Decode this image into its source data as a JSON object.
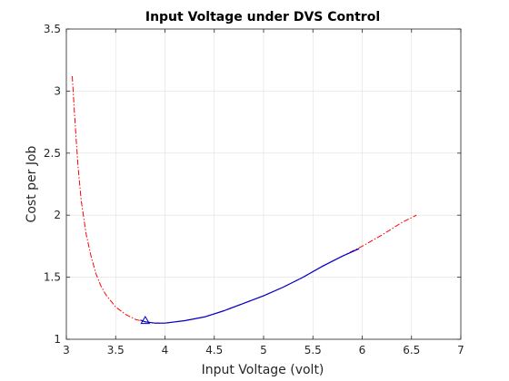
{
  "chart_data": {
    "type": "line",
    "title": "Input Voltage under DVS Control",
    "xlabel": "Input Voltage (volt)",
    "ylabel": "Cost per Job",
    "xlim": [
      3,
      7
    ],
    "ylim": [
      1,
      3.5
    ],
    "xticks": [
      3,
      3.5,
      4,
      4.5,
      5,
      5.5,
      6,
      6.5,
      7
    ],
    "xtick_labels": [
      "3",
      "3.5",
      "4",
      "4.5",
      "5",
      "5.5",
      "6",
      "6.5",
      "7"
    ],
    "yticks": [
      1,
      1.5,
      2,
      2.5,
      3,
      3.5
    ],
    "ytick_labels": [
      "1",
      "1.5",
      "2",
      "2.5",
      "3",
      "3.5"
    ],
    "grid": true,
    "legend": "none",
    "series": [
      {
        "style": "dash-dot",
        "color": "#ff0000",
        "x": [
          3.06,
          3.08,
          3.1,
          3.12,
          3.15,
          3.2,
          3.25,
          3.3,
          3.35,
          3.4,
          3.45,
          3.5,
          3.6,
          3.7,
          3.8,
          3.9,
          4.0,
          4.2,
          4.4,
          4.6,
          4.8,
          5.0,
          5.2,
          5.4,
          5.6,
          5.8,
          6.0,
          6.2,
          6.4,
          6.55
        ],
        "y": [
          3.12,
          2.85,
          2.6,
          2.38,
          2.12,
          1.85,
          1.67,
          1.53,
          1.43,
          1.36,
          1.31,
          1.26,
          1.2,
          1.16,
          1.14,
          1.13,
          1.13,
          1.15,
          1.18,
          1.23,
          1.29,
          1.35,
          1.42,
          1.5,
          1.59,
          1.67,
          1.75,
          1.84,
          1.94,
          2.0
        ]
      },
      {
        "style": "solid",
        "color": "#0000cc",
        "x": [
          3.75,
          3.8,
          3.9,
          4.0,
          4.2,
          4.4,
          4.6,
          4.8,
          5.0,
          5.2,
          5.4,
          5.6,
          5.8,
          5.97
        ],
        "y": [
          1.155,
          1.14,
          1.13,
          1.13,
          1.15,
          1.18,
          1.23,
          1.29,
          1.35,
          1.42,
          1.5,
          1.59,
          1.67,
          1.73
        ]
      }
    ],
    "markers": [
      {
        "shape": "triangle",
        "color": "#0000cc",
        "x": 3.8,
        "y": 1.15
      }
    ]
  }
}
